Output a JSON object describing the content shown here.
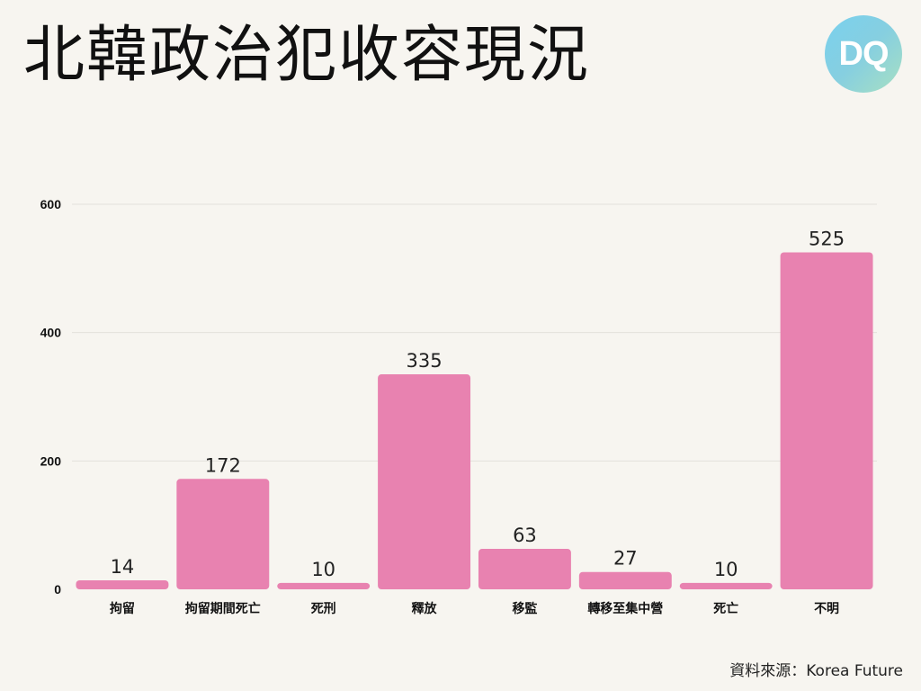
{
  "title": "北韓政治犯收容現況",
  "logo_text": "DQ",
  "source": "資料來源：Korea Future",
  "colors": {
    "bar": "#e882b0",
    "grid": "#e3e1dc",
    "background": "#f7f5f0"
  },
  "chart_data": {
    "type": "bar",
    "categories": [
      "拘留",
      "拘留期間死亡",
      "死刑",
      "釋放",
      "移監",
      "轉移至集中營",
      "死亡",
      "不明"
    ],
    "values": [
      14,
      172,
      10,
      335,
      63,
      27,
      10,
      525
    ],
    "yticks": [
      0,
      200,
      400,
      600
    ],
    "ylim": [
      0,
      600
    ],
    "xlabel": "",
    "ylabel": "",
    "grid": true,
    "data_labels": true
  }
}
